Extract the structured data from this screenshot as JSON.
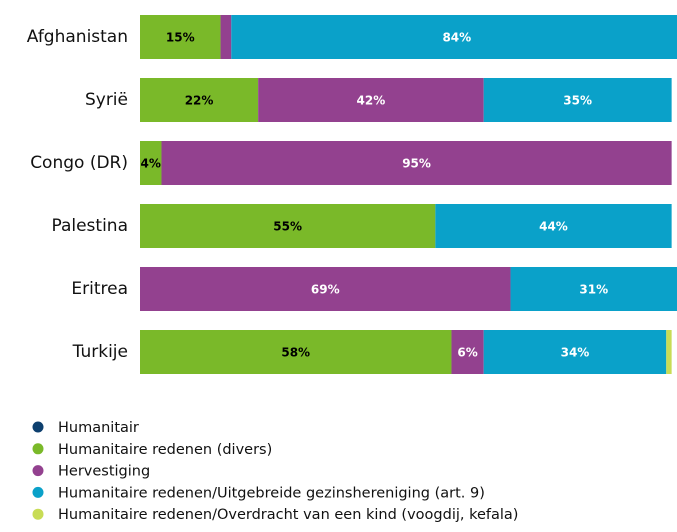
{
  "chart_data": {
    "type": "stacked-bar-horizontal",
    "categories": [
      "Afghanistan",
      "Syrië",
      "Congo (DR)",
      "Palestina",
      "Eritrea",
      "Turkije"
    ],
    "xlim": [
      0,
      100
    ],
    "series": [
      {
        "name": "Humanitair",
        "color": "#0d3f6e",
        "label_color": "#ffffff",
        "values": [
          0,
          0,
          0,
          0,
          0,
          0
        ],
        "value_labels": [
          null,
          null,
          null,
          null,
          null,
          null
        ]
      },
      {
        "name": "Humanitaire redenen (divers)",
        "color": "#7ab929",
        "label_color": "#000000",
        "values": [
          15,
          22,
          4,
          55,
          0,
          58
        ],
        "value_labels": [
          "15%",
          "22%",
          "4%",
          "55%",
          null,
          "58%"
        ]
      },
      {
        "name": "Hervestiging",
        "color": "#93418f",
        "label_color": "#ffffff",
        "values": [
          2,
          42,
          95,
          0,
          69,
          6
        ],
        "value_labels": [
          null,
          "42%",
          "95%",
          null,
          "69%",
          "6%"
        ]
      },
      {
        "name": "Humanitaire redenen/Uitgebreide gezinshereniging (art. 9)",
        "color": "#0aa1c9",
        "label_color": "#ffffff",
        "values": [
          84,
          35,
          0,
          44,
          31,
          34
        ],
        "value_labels": [
          "84%",
          "35%",
          null,
          "44%",
          "31%",
          "34%"
        ]
      },
      {
        "name": "Humanitaire redenen/Overdracht van een kind (voogdij, kefala)",
        "color": "#c8dc55",
        "label_color": "#000000",
        "values": [
          0,
          0,
          0,
          0,
          0,
          1
        ],
        "value_labels": [
          null,
          null,
          null,
          null,
          null,
          null
        ]
      }
    ]
  }
}
